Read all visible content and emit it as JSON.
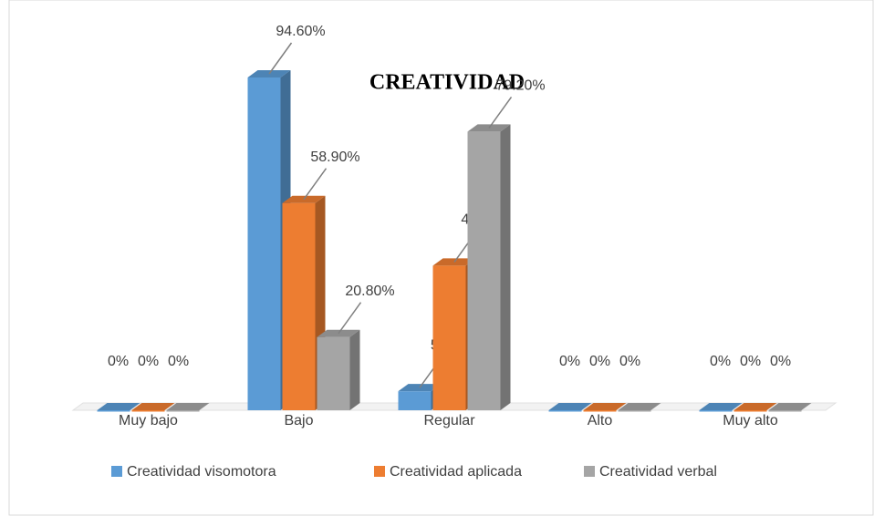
{
  "chart_data": {
    "type": "bar3d",
    "title": "CREATIVIDAD",
    "categories": [
      "Muy bajo",
      "Bajo",
      "Regular",
      "Alto",
      "Muy alto"
    ],
    "series": [
      {
        "name": "Creatividad visomotora",
        "color": "#5b9bd5",
        "values": [
          0,
          94.6,
          5.4,
          0,
          0
        ],
        "value_labels": [
          "0%",
          "94.60%",
          "5.40%",
          "0%",
          "0%"
        ]
      },
      {
        "name": "Creatividad aplicada",
        "color": "#ed7d31",
        "values": [
          0,
          58.9,
          41.1,
          0,
          0
        ],
        "value_labels": [
          "0%",
          "58.90%",
          "41.10%",
          "0%",
          "0%"
        ]
      },
      {
        "name": "Creatividad verbal",
        "color": "#a5a5a5",
        "values": [
          0,
          20.8,
          79.2,
          0,
          0
        ],
        "value_labels": [
          "0%",
          "20.80%",
          "79.20%",
          "0%",
          "0%"
        ]
      }
    ],
    "legend": "bottom"
  }
}
